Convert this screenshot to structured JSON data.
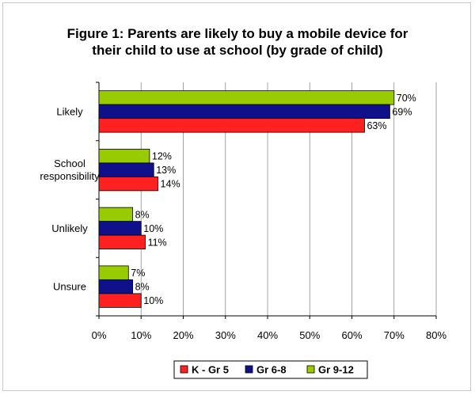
{
  "chart_data": {
    "type": "bar",
    "orientation": "horizontal",
    "title": "Figure 1: Parents are likely to buy a mobile device for their child to use at school (by grade of child)",
    "title_lines": [
      "Figure 1: Parents are likely to buy a mobile device for",
      "their child to use at school (by grade of child)"
    ],
    "categories": [
      "Likely",
      "School responsibility",
      "Unlikely",
      "Unsure"
    ],
    "category_lines": [
      [
        "Likely"
      ],
      [
        "School",
        "responsibility"
      ],
      [
        "Unlikely"
      ],
      [
        "Unsure"
      ]
    ],
    "series": [
      {
        "name": "K - Gr 5",
        "color": "#ff2020",
        "values": [
          63,
          14,
          11,
          10
        ]
      },
      {
        "name": "Gr 6-8",
        "color": "#10108a",
        "values": [
          69,
          13,
          10,
          8
        ]
      },
      {
        "name": "Gr 9-12",
        "color": "#99cc00",
        "values": [
          70,
          12,
          8,
          7
        ]
      }
    ],
    "xlim": [
      0,
      80
    ],
    "xticks": [
      0,
      10,
      20,
      30,
      40,
      50,
      60,
      70,
      80
    ],
    "tick_format": "%",
    "value_format": "%",
    "grid": true,
    "legend": "bottom",
    "xlabel": "",
    "ylabel": ""
  }
}
